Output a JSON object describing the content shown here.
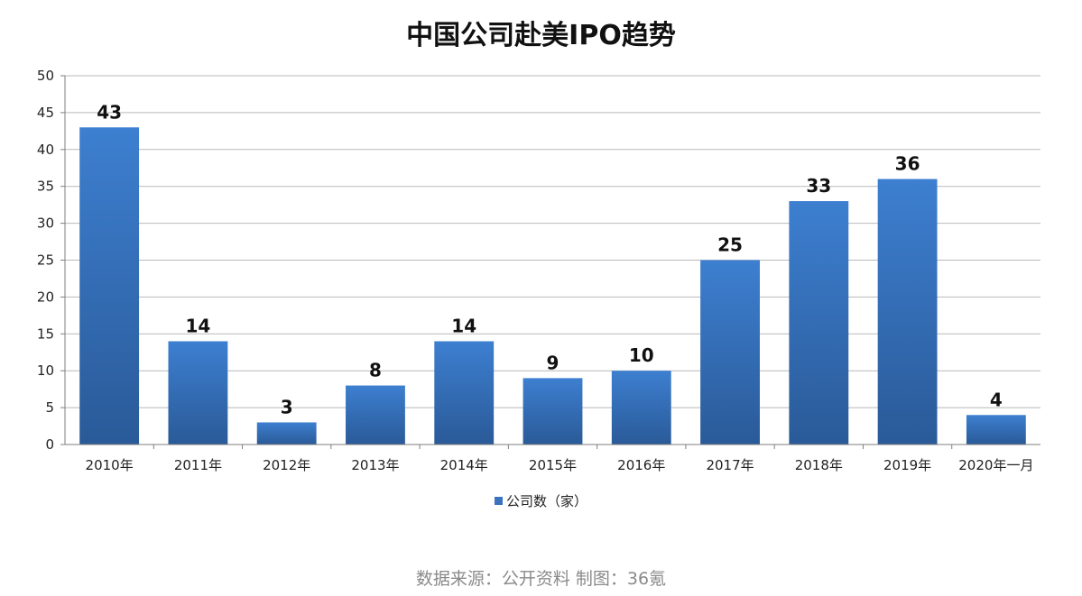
{
  "chart_data": {
    "type": "bar",
    "title": "中国公司赴美IPO趋势",
    "categories": [
      "2010年",
      "2011年",
      "2012年",
      "2013年",
      "2014年",
      "2015年",
      "2016年",
      "2017年",
      "2018年",
      "2019年",
      "2020年一月"
    ],
    "series": [
      {
        "name": "公司数（家）",
        "values": [
          43,
          14,
          3,
          8,
          14,
          9,
          10,
          25,
          33,
          36,
          4
        ]
      }
    ],
    "ylim": [
      0,
      50
    ],
    "yticks": [
      0,
      5,
      10,
      15,
      20,
      25,
      30,
      35,
      40,
      45,
      50
    ],
    "grid": true,
    "legend_position": "bottom",
    "data_labels": true,
    "bar_color": "#3a74c0"
  },
  "source_note": "数据来源：公开资料 制图：36氪"
}
